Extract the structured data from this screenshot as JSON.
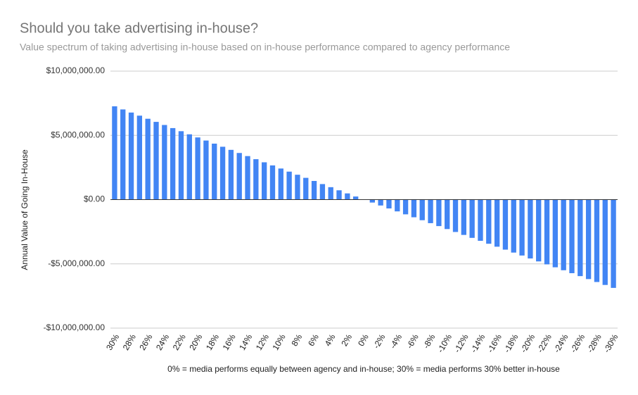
{
  "chart_data": {
    "type": "bar",
    "title": "Should you take advertising in-house?",
    "subtitle": "Value spectrum of taking advertising in-house based on in-house performance compared to agency performance",
    "y_label": "Annual Value of Going In-House",
    "x_label": "0% = media performs equally between agency and in-house; 30% = media performs 30% better in-house",
    "color": "#4285f4",
    "grid": true,
    "categories": [
      "30%",
      null,
      "28%",
      null,
      "26%",
      null,
      "24%",
      null,
      "22%",
      null,
      "20%",
      null,
      "18%",
      null,
      "16%",
      null,
      "14%",
      null,
      "12%",
      null,
      "10%",
      null,
      "8%",
      null,
      "6%",
      null,
      "4%",
      null,
      "2%",
      null,
      "0%",
      null,
      "-2%",
      null,
      "-4%",
      null,
      "-6%",
      null,
      "-8%",
      null,
      "-10%",
      null,
      "-12%",
      null,
      "-14%",
      null,
      "-16%",
      null,
      "-18%",
      null,
      "-20%",
      null,
      "-22%",
      null,
      "-24%",
      null,
      "-26%",
      null,
      "-28%",
      null,
      "-30%"
    ],
    "values": [
      7260000,
      7018000,
      6776000,
      6534000,
      6292000,
      6050000,
      5808000,
      5566000,
      5324000,
      5082000,
      4840000,
      4598000,
      4356000,
      4114000,
      3872000,
      3630000,
      3388000,
      3146000,
      2904000,
      2662000,
      2420000,
      2178000,
      1936000,
      1694000,
      1452000,
      1210000,
      968000,
      726000,
      484000,
      242000,
      0,
      -229000,
      -458000,
      -687000,
      -916000,
      -1145000,
      -1374000,
      -1603000,
      -1832000,
      -2061000,
      -2290000,
      -2519000,
      -2748000,
      -2977000,
      -3206000,
      -3435000,
      -3664000,
      -3893000,
      -4122000,
      -4351000,
      -4580000,
      -4809000,
      -5038000,
      -5267000,
      -5496000,
      -5725000,
      -5954000,
      -6183000,
      -6412000,
      -6641000,
      -6870000
    ],
    "ylim": [
      -10000000,
      10000000
    ],
    "yticks": [
      {
        "value": -10000000,
        "label": "-$10,000,000.00"
      },
      {
        "value": -5000000,
        "label": "-$5,000,000.00"
      },
      {
        "value": 0,
        "label": "$0.00"
      },
      {
        "value": 5000000,
        "label": "$5,000,000.00"
      },
      {
        "value": 10000000,
        "label": "$10,000,000.00"
      }
    ]
  }
}
